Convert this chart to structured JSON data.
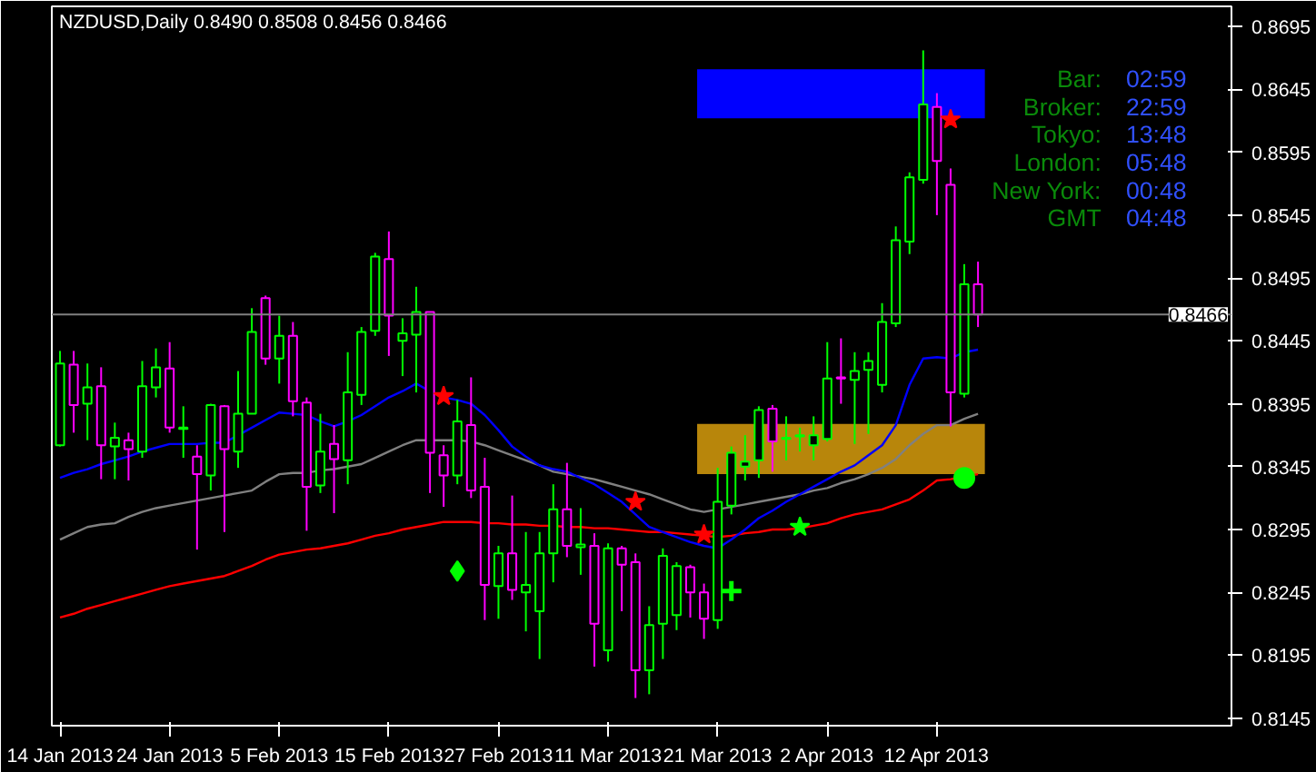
{
  "chart_data": {
    "type": "candlestick",
    "title": "NZDUSD,Daily  0.8490 0.8508 0.8456 0.8466",
    "categories": [
      "14 Jan 2013",
      null,
      null,
      null,
      null,
      null,
      null,
      null,
      "24 Jan 2013",
      null,
      null,
      null,
      null,
      null,
      null,
      null,
      "5 Feb 2013",
      null,
      null,
      null,
      null,
      null,
      null,
      null,
      "15 Feb 2013",
      null,
      null,
      null,
      null,
      null,
      null,
      null,
      "27 Feb 2013",
      null,
      null,
      null,
      null,
      null,
      null,
      null,
      "11 Mar 2013",
      null,
      null,
      null,
      null,
      null,
      null,
      null,
      "21 Mar 2013",
      null,
      null,
      null,
      null,
      null,
      null,
      null,
      "2 Apr 2013",
      null,
      null,
      null,
      null,
      null,
      null,
      null,
      "12 Apr 2013",
      null,
      null,
      null
    ],
    "ohlc": [
      [
        0.8362,
        0.8437,
        0.8361,
        0.8427
      ],
      [
        0.8426,
        0.8437,
        0.8372,
        0.8394
      ],
      [
        0.8395,
        0.8427,
        0.8366,
        0.8408
      ],
      [
        0.8409,
        0.8424,
        0.8335,
        0.8362
      ],
      [
        0.8361,
        0.838,
        0.8335,
        0.8368
      ],
      [
        0.8366,
        0.8372,
        0.8334,
        0.8359
      ],
      [
        0.8357,
        0.8429,
        0.8352,
        0.8409
      ],
      [
        0.8408,
        0.8439,
        0.84,
        0.8424
      ],
      [
        0.8423,
        0.8444,
        0.8372,
        0.8376
      ],
      [
        0.8375,
        0.8393,
        0.8352,
        0.8376
      ],
      [
        0.8353,
        0.8362,
        0.8279,
        0.8339
      ],
      [
        0.8338,
        0.8395,
        0.8326,
        0.8394
      ],
      [
        0.8393,
        0.8394,
        0.8293,
        0.8359
      ],
      [
        0.8357,
        0.8421,
        0.8344,
        0.8387
      ],
      [
        0.8387,
        0.8471,
        0.8387,
        0.8452
      ],
      [
        0.8479,
        0.8481,
        0.8426,
        0.8431
      ],
      [
        0.8431,
        0.8465,
        0.8411,
        0.8449
      ],
      [
        0.8449,
        0.846,
        0.8385,
        0.8397
      ],
      [
        0.8396,
        0.84,
        0.8294,
        0.8329
      ],
      [
        0.833,
        0.8387,
        0.8324,
        0.8357
      ],
      [
        0.8363,
        0.8378,
        0.8308,
        0.8351
      ],
      [
        0.835,
        0.8436,
        0.8331,
        0.8404
      ],
      [
        0.8402,
        0.8456,
        0.8394,
        0.8452
      ],
      [
        0.8453,
        0.8515,
        0.8449,
        0.8512
      ],
      [
        0.851,
        0.8532,
        0.8433,
        0.8465
      ],
      [
        0.8445,
        0.8463,
        0.8417,
        0.8451
      ],
      [
        0.845,
        0.8488,
        0.8404,
        0.8468
      ],
      [
        0.8468,
        0.8468,
        0.8324,
        0.8356
      ],
      [
        0.8354,
        0.8362,
        0.8313,
        0.8338
      ],
      [
        0.8338,
        0.8398,
        0.8331,
        0.8381
      ],
      [
        0.8378,
        0.8416,
        0.832,
        0.8326
      ],
      [
        0.8329,
        0.8352,
        0.8223,
        0.8251
      ],
      [
        0.825,
        0.8282,
        0.8224,
        0.8276
      ],
      [
        0.8276,
        0.8322,
        0.8239,
        0.8247
      ],
      [
        0.8245,
        0.8293,
        0.8214,
        0.8251
      ],
      [
        0.823,
        0.8293,
        0.8192,
        0.8276
      ],
      [
        0.8276,
        0.8331,
        0.8253,
        0.8311
      ],
      [
        0.8311,
        0.8348,
        0.8273,
        0.8282
      ],
      [
        0.8281,
        0.8312,
        0.8259,
        0.8283
      ],
      [
        0.8282,
        0.8292,
        0.8186,
        0.822
      ],
      [
        0.8199,
        0.8284,
        0.819,
        0.828
      ],
      [
        0.828,
        0.8282,
        0.823,
        0.8267
      ],
      [
        0.8269,
        0.8276,
        0.8161,
        0.8183
      ],
      [
        0.8183,
        0.8234,
        0.8164,
        0.8219
      ],
      [
        0.822,
        0.828,
        0.8192,
        0.8274
      ],
      [
        0.8227,
        0.8269,
        0.8215,
        0.8266
      ],
      [
        0.8265,
        0.8267,
        0.8225,
        0.8245
      ],
      [
        0.8245,
        0.8252,
        0.8208,
        0.8224
      ],
      [
        0.8223,
        0.8344,
        0.8216,
        0.8317
      ],
      [
        0.8314,
        0.8361,
        0.8307,
        0.8356
      ],
      [
        0.8345,
        0.837,
        0.8334,
        0.8349
      ],
      [
        0.835,
        0.8393,
        0.8336,
        0.839
      ],
      [
        0.8391,
        0.8394,
        0.8341,
        0.8365
      ],
      [
        0.8367,
        0.8385,
        0.835,
        0.8368
      ],
      [
        0.8369,
        0.8376,
        0.8357,
        0.837
      ],
      [
        0.8362,
        0.8385,
        0.835,
        0.837
      ],
      [
        0.8367,
        0.8444,
        0.8365,
        0.8415
      ],
      [
        0.8416,
        0.8447,
        0.8395,
        0.8415
      ],
      [
        0.8414,
        0.8436,
        0.8363,
        0.8421
      ],
      [
        0.8422,
        0.8436,
        0.8371,
        0.8429
      ],
      [
        0.841,
        0.8475,
        0.8404,
        0.846
      ],
      [
        0.8459,
        0.8536,
        0.8456,
        0.8525
      ],
      [
        0.8524,
        0.8579,
        0.8514,
        0.8575
      ],
      [
        0.8573,
        0.8676,
        0.857,
        0.8633
      ],
      [
        0.8631,
        0.8642,
        0.8545,
        0.8588
      ],
      [
        0.8569,
        0.8582,
        0.8377,
        0.8404
      ],
      [
        0.8403,
        0.8506,
        0.84,
        0.849
      ],
      [
        0.849,
        0.8508,
        0.8456,
        0.8466
      ]
    ],
    "colors": [
      "#00ff00",
      "#ff00ff",
      "#00ff00",
      "#ff00ff",
      "#00ff00",
      "#ff00ff",
      "#00ff00",
      "#00ff00",
      "#ff00ff",
      "#00ff00",
      "#ff00ff",
      "#00ff00",
      "#ff00ff",
      "#00ff00",
      "#00ff00",
      "#ff00ff",
      "#00ff00",
      "#ff00ff",
      "#ff00ff",
      "#00ff00",
      "#ff00ff",
      "#00ff00",
      "#00ff00",
      "#00ff00",
      "#ff00ff",
      "#00ff00",
      "#00ff00",
      "#ff00ff",
      "#ff00ff",
      "#00ff00",
      "#ff00ff",
      "#ff00ff",
      "#00ff00",
      "#ff00ff",
      "#00ff00",
      "#00ff00",
      "#00ff00",
      "#ff00ff",
      "#00ff00",
      "#ff00ff",
      "#00ff00",
      "#ff00ff",
      "#ff00ff",
      "#00ff00",
      "#00ff00",
      "#00ff00",
      "#ff00ff",
      "#ff00ff",
      "#00ff00",
      "#00ff00",
      "#00ff00",
      "#00ff00",
      "#ff00ff",
      "#00ff00",
      "#00ff00",
      "#00ff00",
      "#00ff00",
      "#ff00ff",
      "#00ff00",
      "#00ff00",
      "#00ff00",
      "#00ff00",
      "#00ff00",
      "#00ff00",
      "#ff00ff",
      "#ff00ff",
      "#00ff00",
      "#ff00ff"
    ],
    "series": [
      {
        "type": "line",
        "color": "#ff0000",
        "values": [
          0.8225,
          0.8228,
          0.8232,
          0.8235,
          0.8238,
          0.8241,
          0.8244,
          0.8247,
          0.825,
          0.8252,
          0.8254,
          0.8256,
          0.8258,
          0.8262,
          0.8266,
          0.8271,
          0.8275,
          0.8277,
          0.8279,
          0.828,
          0.8282,
          0.8284,
          0.8287,
          0.829,
          0.8292,
          0.8295,
          0.8297,
          0.8299,
          0.8301,
          0.8301,
          0.8301,
          0.83,
          0.83,
          0.8299,
          0.8299,
          0.8298,
          0.8298,
          0.8297,
          0.8297,
          0.8296,
          0.8296,
          0.8295,
          0.8294,
          0.8293,
          0.8293,
          0.8292,
          0.8291,
          0.829,
          0.8289,
          0.829,
          0.8292,
          0.8293,
          0.8295,
          0.8295,
          0.8296,
          0.8298,
          0.83,
          0.8304,
          0.8307,
          0.8309,
          0.8311,
          0.8315,
          0.8319,
          0.8326,
          0.8334,
          0.8335,
          0.8337,
          0.8339
        ]
      },
      {
        "type": "line",
        "color": "#808080",
        "values": [
          0.8287,
          0.8292,
          0.8297,
          0.8299,
          0.83,
          0.8305,
          0.8309,
          0.8312,
          0.8314,
          0.8316,
          0.8318,
          0.832,
          0.8322,
          0.8324,
          0.8326,
          0.8333,
          0.8339,
          0.834,
          0.834,
          0.8342,
          0.8343,
          0.8345,
          0.8347,
          0.8352,
          0.8357,
          0.8362,
          0.8366,
          0.8366,
          0.8366,
          0.8366,
          0.8365,
          0.8362,
          0.8358,
          0.8354,
          0.835,
          0.8346,
          0.8341,
          0.8339,
          0.8337,
          0.8335,
          0.8332,
          0.8329,
          0.8326,
          0.8323,
          0.8319,
          0.8315,
          0.8311,
          0.8309,
          0.8311,
          0.8313,
          0.8315,
          0.8317,
          0.8319,
          0.8321,
          0.8323,
          0.8326,
          0.8328,
          0.8332,
          0.8335,
          0.8339,
          0.8344,
          0.8351,
          0.8362,
          0.8371,
          0.8378,
          0.8378,
          0.8383,
          0.8387
        ]
      },
      {
        "type": "line",
        "color": "#0000ff",
        "values": [
          0.8336,
          0.834,
          0.8343,
          0.8347,
          0.835,
          0.8353,
          0.8357,
          0.836,
          0.8363,
          0.8363,
          0.8363,
          0.8364,
          0.8364,
          0.837,
          0.8376,
          0.8382,
          0.8388,
          0.8387,
          0.8386,
          0.8381,
          0.8377,
          0.8381,
          0.8386,
          0.8393,
          0.84,
          0.8405,
          0.8411,
          0.8405,
          0.84,
          0.8398,
          0.8395,
          0.8386,
          0.8374,
          0.8361,
          0.8353,
          0.8346,
          0.8343,
          0.8341,
          0.8336,
          0.8331,
          0.8324,
          0.8317,
          0.8307,
          0.8297,
          0.8293,
          0.8289,
          0.8285,
          0.8282,
          0.828,
          0.8287,
          0.8295,
          0.8304,
          0.831,
          0.8317,
          0.8323,
          0.8329,
          0.8335,
          0.8341,
          0.8346,
          0.8354,
          0.8362,
          0.8378,
          0.841,
          0.8431,
          0.8432,
          0.8431,
          0.8436,
          0.8438
        ]
      },
      {
        "type": "scatter",
        "color": "#ff0000",
        "marker": "star",
        "values": [
          null,
          null,
          null,
          null,
          null,
          null,
          null,
          null,
          null,
          null,
          null,
          null,
          null,
          null,
          null,
          null,
          null,
          null,
          null,
          null,
          null,
          null,
          null,
          null,
          null,
          null,
          null,
          null,
          0.8401,
          null,
          null,
          null,
          null,
          null,
          null,
          null,
          null,
          null,
          null,
          null,
          null,
          null,
          0.8317,
          null,
          null,
          null,
          null,
          0.8291,
          null,
          null,
          null,
          null,
          null,
          null,
          null,
          null,
          null,
          null,
          null,
          null,
          null,
          null,
          null,
          null,
          null,
          0.8621,
          null,
          null
        ]
      },
      {
        "type": "scatter",
        "color": "#00ff00",
        "marker": "diamond",
        "values": [
          null,
          null,
          null,
          null,
          null,
          null,
          null,
          null,
          null,
          null,
          null,
          null,
          null,
          null,
          null,
          null,
          null,
          null,
          null,
          null,
          null,
          null,
          null,
          null,
          null,
          null,
          null,
          null,
          null,
          0.8262,
          null,
          null,
          null,
          null,
          null,
          null,
          null,
          null,
          null,
          null,
          null,
          null,
          null,
          null,
          null,
          null,
          null,
          null,
          null,
          null,
          null,
          null,
          null,
          null,
          null,
          null,
          null,
          null,
          null,
          null,
          null,
          null,
          null,
          null,
          null,
          null,
          null,
          null
        ]
      },
      {
        "type": "scatter",
        "color": "#00ff00",
        "marker": "cross",
        "values": [
          null,
          null,
          null,
          null,
          null,
          null,
          null,
          null,
          null,
          null,
          null,
          null,
          null,
          null,
          null,
          null,
          null,
          null,
          null,
          null,
          null,
          null,
          null,
          null,
          null,
          null,
          null,
          null,
          null,
          null,
          null,
          null,
          null,
          null,
          null,
          null,
          null,
          null,
          null,
          null,
          null,
          null,
          null,
          null,
          null,
          null,
          null,
          null,
          null,
          0.8246,
          null,
          null,
          null,
          null,
          null,
          null,
          null,
          null,
          null,
          null,
          null,
          null,
          null,
          null,
          null,
          null,
          null,
          null
        ]
      },
      {
        "type": "scatter",
        "color": "#00ff00",
        "marker": "star",
        "values": [
          null,
          null,
          null,
          null,
          null,
          null,
          null,
          null,
          null,
          null,
          null,
          null,
          null,
          null,
          null,
          null,
          null,
          null,
          null,
          null,
          null,
          null,
          null,
          null,
          null,
          null,
          null,
          null,
          null,
          null,
          null,
          null,
          null,
          null,
          null,
          null,
          null,
          null,
          null,
          null,
          null,
          null,
          null,
          null,
          null,
          null,
          null,
          null,
          null,
          null,
          null,
          null,
          null,
          null,
          0.8297,
          null,
          null,
          null,
          null,
          null,
          null,
          null,
          null,
          null,
          null,
          null,
          null,
          null
        ]
      },
      {
        "type": "scatter",
        "color": "#00ff00",
        "marker": "circle",
        "values": [
          null,
          null,
          null,
          null,
          null,
          null,
          null,
          null,
          null,
          null,
          null,
          null,
          null,
          null,
          null,
          null,
          null,
          null,
          null,
          null,
          null,
          null,
          null,
          null,
          null,
          null,
          null,
          null,
          null,
          null,
          null,
          null,
          null,
          null,
          null,
          null,
          null,
          null,
          null,
          null,
          null,
          null,
          null,
          null,
          null,
          null,
          null,
          null,
          null,
          null,
          null,
          null,
          null,
          null,
          null,
          null,
          null,
          null,
          null,
          null,
          null,
          null,
          null,
          null,
          null,
          null,
          0.8336,
          null
        ]
      }
    ],
    "ylim": [
      0.8139,
      0.8711
    ],
    "yticks": [
      0.8145,
      0.8195,
      0.8245,
      0.8295,
      0.8345,
      0.8395,
      0.8445,
      0.8495,
      0.8545,
      0.8595,
      0.8645,
      0.8695
    ],
    "bands": [
      {
        "axis": "y",
        "from": 0.8622,
        "to": 0.8661,
        "color": "#0000ff"
      },
      {
        "axis": "y",
        "from": 0.8339,
        "to": 0.8379,
        "color": "#b8860b"
      }
    ],
    "ref_lines": [
      {
        "axis": "y",
        "value": 0.8466,
        "label": "0.8466",
        "color": "#808080"
      }
    ],
    "annotations": [
      "Bar:",
      "02:59",
      "Broker:",
      "22:59",
      "Tokyo:",
      "13:48",
      "London:",
      "05:48",
      "New York:",
      "00:48",
      "GMT",
      "04:48"
    ]
  }
}
